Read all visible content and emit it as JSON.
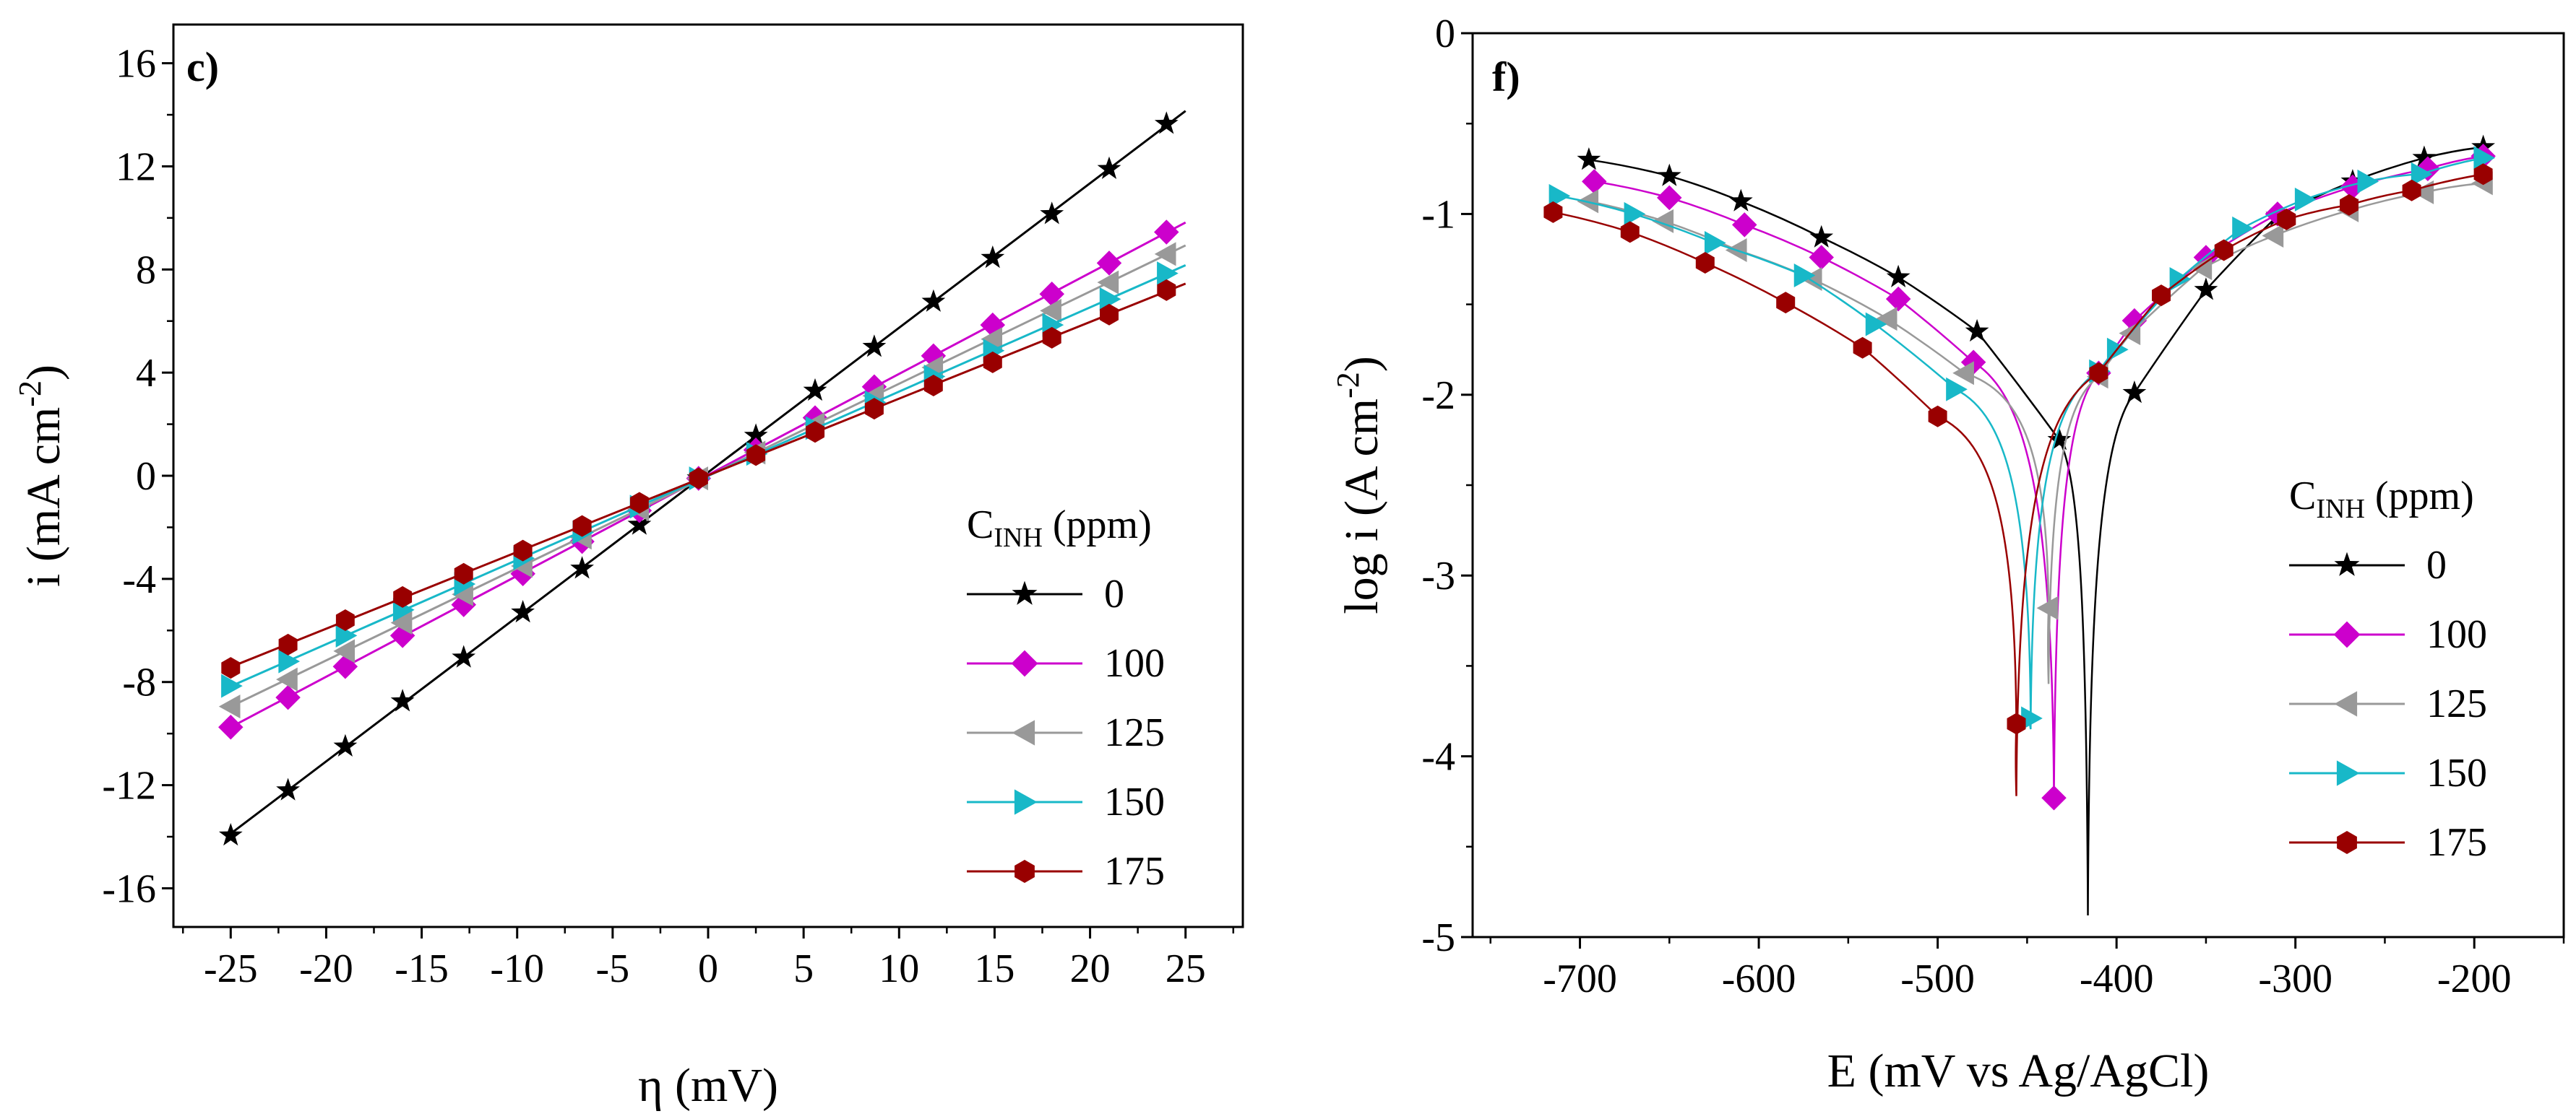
{
  "chart_data": [
    {
      "type": "line",
      "panel_label": "c)",
      "xlabel": "η (mV)",
      "ylabel_main": "i  (mA cm",
      "ylabel_sup": "-2",
      "ylabel_close": ")",
      "xlim": [
        -28,
        28
      ],
      "ylim": [
        -17.5,
        17.5
      ],
      "xticks": [
        -25,
        -20,
        -15,
        -10,
        -5,
        0,
        5,
        10,
        15,
        20,
        25
      ],
      "xtick_labels": [
        "-25",
        "-20",
        "-15",
        "-10",
        "-5",
        "0",
        "5",
        "10",
        "15",
        "20",
        "25"
      ],
      "yticks": [
        -16,
        -12,
        -8,
        -4,
        0,
        4,
        8,
        12,
        16
      ],
      "ytick_labels": [
        "-16",
        "-12",
        "-8",
        "-4",
        "0",
        "4",
        "8",
        "12",
        "16"
      ],
      "legend": {
        "title_main": "C",
        "title_sub": "INH",
        "title_unit": " (ppm)",
        "placement": "bottom-right"
      },
      "series": [
        {
          "name": "0",
          "color": "#000000",
          "marker": "star",
          "x": [
            -25,
            -22,
            -19,
            -16,
            -12.8,
            -9.7,
            -6.6,
            -3.6,
            -0.5,
            2.5,
            5.6,
            8.7,
            11.8,
            14.9,
            18,
            21,
            24
          ],
          "y": [
            -13.95,
            -12.2,
            -10.5,
            -8.75,
            -7.05,
            -5.3,
            -3.6,
            -1.9,
            -0.1,
            1.55,
            3.3,
            5,
            6.75,
            8.45,
            10.15,
            11.9,
            13.65
          ]
        },
        {
          "name": "100",
          "color": "#cc00cc",
          "marker": "diamond",
          "x": [
            -25,
            -22,
            -19,
            -16,
            -12.8,
            -9.7,
            -6.6,
            -3.6,
            -0.5,
            2.5,
            5.6,
            8.7,
            11.8,
            14.9,
            18,
            21,
            24
          ],
          "y": [
            -9.75,
            -8.6,
            -7.4,
            -6.2,
            -5,
            -3.8,
            -2.55,
            -1.35,
            -0.1,
            1,
            2.25,
            3.45,
            4.65,
            5.85,
            7.05,
            8.25,
            9.45
          ]
        },
        {
          "name": "125",
          "color": "#999999",
          "marker": "tri-left",
          "x": [
            -25,
            -22,
            -19,
            -16,
            -12.8,
            -9.7,
            -6.6,
            -3.6,
            -0.5,
            2.5,
            5.6,
            8.7,
            11.8,
            14.9,
            18,
            21,
            24
          ],
          "y": [
            -8.95,
            -7.9,
            -6.8,
            -5.7,
            -4.6,
            -3.5,
            -2.4,
            -1.3,
            -0.1,
            0.9,
            2,
            3.1,
            4.2,
            5.3,
            6.4,
            7.5,
            8.6
          ]
        },
        {
          "name": "150",
          "color": "#18b8c8",
          "marker": "tri-right",
          "x": [
            -25,
            -22,
            -19,
            -16,
            -12.8,
            -9.7,
            -6.6,
            -3.6,
            -0.5,
            2.5,
            5.6,
            8.7,
            11.8,
            14.9,
            18,
            21,
            24
          ],
          "y": [
            -8.15,
            -7.2,
            -6.2,
            -5.2,
            -4.2,
            -3.2,
            -2.2,
            -1.2,
            -0.1,
            0.85,
            1.85,
            2.85,
            3.85,
            4.85,
            5.85,
            6.85,
            7.85
          ]
        },
        {
          "name": "175",
          "color": "#990000",
          "marker": "hexagon",
          "x": [
            -25,
            -22,
            -19,
            -16,
            -12.8,
            -9.7,
            -6.6,
            -3.6,
            -0.5,
            2.5,
            5.6,
            8.7,
            11.8,
            14.9,
            18,
            21,
            24
          ],
          "y": [
            -7.45,
            -6.55,
            -5.6,
            -4.7,
            -3.8,
            -2.9,
            -1.95,
            -1.05,
            -0.1,
            0.8,
            1.7,
            2.6,
            3.5,
            4.4,
            5.35,
            6.25,
            7.2
          ]
        }
      ]
    },
    {
      "type": "line",
      "panel_label": "f)",
      "xlabel": "E (mV vs Ag/AgCl)",
      "ylabel_main": "log  i  (A cm",
      "ylabel_sup": "-2",
      "ylabel_close": ")",
      "xlim": [
        -760,
        -150
      ],
      "ylim": [
        -5,
        0
      ],
      "xticks": [
        -700,
        -600,
        -500,
        -400,
        -300,
        -200
      ],
      "xtick_labels": [
        "-700",
        "-600",
        "-500",
        "-400",
        "-300",
        "-200"
      ],
      "yticks": [
        -5,
        -4,
        -3,
        -2,
        -1,
        0
      ],
      "ytick_labels": [
        "-5",
        "-4",
        "-3",
        "-2",
        "-1",
        "0"
      ],
      "legend": {
        "title_main": "C",
        "title_sub": "INH",
        "title_unit": " (ppm)",
        "placement": "right"
      },
      "series": [
        {
          "name": "0",
          "color": "#000000",
          "marker": "star",
          "ecorr": -416,
          "min_log_i": -4.88,
          "x": [
            -695,
            -650,
            -610,
            -565,
            -522,
            -478,
            -432,
            -390,
            -350,
            -310,
            -268,
            -228,
            -195
          ],
          "y": [
            -0.7,
            -0.79,
            -0.93,
            -1.13,
            -1.35,
            -1.65,
            -2.25,
            -1.99,
            -1.42,
            -1.01,
            -0.82,
            -0.69,
            -0.63
          ]
        },
        {
          "name": "100",
          "color": "#cc00cc",
          "marker": "diamond",
          "ecorr": -435,
          "min_log_i": -4.25,
          "x": [
            -692,
            -650,
            -608,
            -565,
            -522,
            -480,
            -435,
            -410,
            -390,
            -350,
            -310,
            -268,
            -226,
            -195
          ],
          "y": [
            -0.82,
            -0.91,
            -1.06,
            -1.24,
            -1.47,
            -1.82,
            -4.23,
            -1.88,
            -1.59,
            -1.24,
            -1.0,
            -0.85,
            -0.75,
            -0.68
          ]
        },
        {
          "name": "125",
          "color": "#999999",
          "marker": "tri-left",
          "ecorr": -438,
          "min_log_i": -3.6,
          "x": [
            -695,
            -653,
            -612,
            -570,
            -528,
            -485,
            -438,
            -410,
            -392,
            -352,
            -312,
            -270,
            -228,
            -195
          ],
          "y": [
            -0.93,
            -1.04,
            -1.2,
            -1.36,
            -1.58,
            -1.88,
            -3.18,
            -1.9,
            -1.66,
            -1.3,
            -1.12,
            -0.98,
            -0.88,
            -0.83
          ]
        },
        {
          "name": "150",
          "color": "#18b8c8",
          "marker": "tri-right",
          "ecorr": -448,
          "min_log_i": -3.85,
          "x": [
            -712,
            -670,
            -625,
            -575,
            -535,
            -490,
            -448,
            -410,
            -400,
            -365,
            -330,
            -295,
            -260,
            -230,
            -195
          ],
          "y": [
            -0.9,
            -1.0,
            -1.16,
            -1.34,
            -1.61,
            -1.97,
            -3.79,
            -1.87,
            -1.75,
            -1.36,
            -1.08,
            -0.92,
            -0.82,
            -0.78,
            -0.69
          ]
        },
        {
          "name": "175",
          "color": "#990000",
          "marker": "hexagon",
          "ecorr": -456,
          "min_log_i": -4.22,
          "x": [
            -715,
            -672,
            -630,
            -585,
            -542,
            -500,
            -456,
            -410,
            -375,
            -340,
            -305,
            -270,
            -235,
            -195
          ],
          "y": [
            -0.99,
            -1.1,
            -1.27,
            -1.49,
            -1.74,
            -2.12,
            -3.82,
            -1.88,
            -1.45,
            -1.2,
            -1.03,
            -0.95,
            -0.87,
            -0.78
          ]
        }
      ]
    }
  ]
}
